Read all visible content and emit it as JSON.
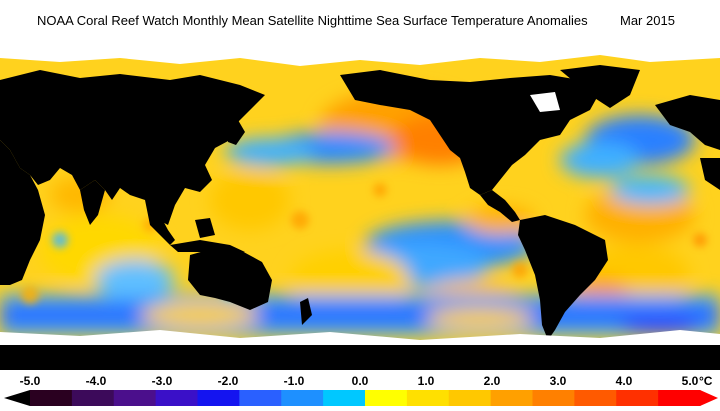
{
  "title": {
    "text": "NOAA Coral Reef Watch Monthly Mean Satellite Nighttime Sea Surface Temperature Anomalies",
    "date": "Mar 2015"
  },
  "map": {
    "projection": "equirectangular",
    "land_color": "#000000",
    "ice_color": "#ffffff",
    "regions": [
      {
        "name": "north-pacific-warm-blob",
        "anomaly": 2.5
      },
      {
        "name": "central-north-pacific-cool",
        "anomaly": -1.0
      },
      {
        "name": "eastern-tropical-pacific-cool",
        "anomaly": -1.0
      },
      {
        "name": "western-pacific-warm",
        "anomaly": 1.0
      },
      {
        "name": "indian-ocean-warm",
        "anomaly": 1.0
      },
      {
        "name": "north-atlantic-cool",
        "anomaly": -1.0
      },
      {
        "name": "south-atlantic-warm",
        "anomaly": 1.0
      },
      {
        "name": "southern-ocean-cool",
        "anomaly": -1.0
      }
    ]
  },
  "colorbar": {
    "ticks": [
      "-5.0",
      "-4.0",
      "-3.0",
      "-2.0",
      "-1.0",
      "0.0",
      "1.0",
      "2.0",
      "3.0",
      "4.0",
      "5.0"
    ],
    "unit": "°C",
    "colors": [
      "#2a0020",
      "#3c0a5a",
      "#4b0f8c",
      "#3a10c8",
      "#1414f0",
      "#2a60ff",
      "#1e90ff",
      "#00c8ff",
      "#ffff00",
      "#ffe000",
      "#ffc800",
      "#ffa000",
      "#ff8000",
      "#ff5a00",
      "#ff3000",
      "#ff0000"
    ]
  }
}
